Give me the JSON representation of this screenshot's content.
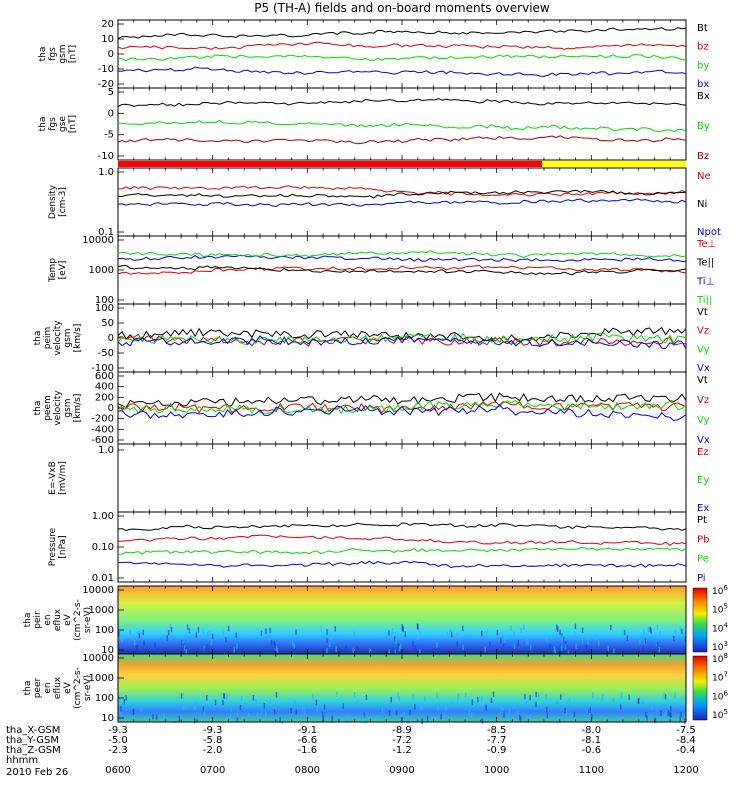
{
  "chart_data": {
    "type": "line",
    "title": "P5 (TH-A) fields and on-board moments overview",
    "date_label": "2010 Feb 26",
    "x_ticks": [
      "0600",
      "0700",
      "0800",
      "0900",
      "1000",
      "1100",
      "1200"
    ],
    "ephemeris": [
      {
        "label": "tha_X-GSM",
        "values": [
          "-9.3",
          "-9.3",
          "-9.1",
          "-8.9",
          "-8.5",
          "-8.0",
          "-7.5"
        ]
      },
      {
        "label": "tha_Y-GSM",
        "values": [
          "-5.0",
          "-5.8",
          "-6.6",
          "-7.2",
          "-7.7",
          "-8.1",
          "-8.4"
        ]
      },
      {
        "label": "tha_Z-GSM",
        "values": [
          "-2.3",
          "-2.0",
          "-1.6",
          "-1.2",
          "-0.9",
          "-0.6",
          "-0.4"
        ]
      },
      {
        "label": "hhmm",
        "values": []
      }
    ],
    "panels": [
      {
        "id": "fgs-gsm",
        "ylabel": [
          "tha",
          "fgs",
          "gsm",
          "[nT]"
        ],
        "ylim": [
          -20,
          20
        ],
        "yticks": [
          "20",
          "10",
          "0",
          "-10",
          "-20"
        ],
        "series": [
          {
            "name": "Bt",
            "color": "#000000"
          },
          {
            "name": "bz",
            "color": "#e00000"
          },
          {
            "name": "by",
            "color": "#00dd00"
          },
          {
            "name": "bx",
            "color": "#0000e0"
          }
        ]
      },
      {
        "id": "fgs-gse",
        "ylabel": [
          "tha",
          "fgs",
          "gse",
          "[nT]"
        ],
        "ylim": [
          -12,
          8
        ],
        "yticks": [
          "5",
          "0",
          "-5",
          "-10"
        ],
        "series": [
          {
            "name": "Bx",
            "color": "#000000"
          },
          {
            "name": "By",
            "color": "#00dd00"
          },
          {
            "name": "Bz",
            "color": "#a00000"
          }
        ]
      },
      {
        "id": "density",
        "ylabel": [
          "Density",
          "[cm-3]"
        ],
        "ylim": [
          0.1,
          1.0
        ],
        "yticks": [
          "1.0",
          "0.1"
        ],
        "log": true,
        "series": [
          {
            "name": "Ne",
            "color": "#e00000"
          },
          {
            "name": "Ni",
            "color": "#000000"
          },
          {
            "name": "Npot",
            "color": "#0000e0"
          }
        ]
      },
      {
        "id": "temperature",
        "ylabel": [
          "Temp",
          "[eV]"
        ],
        "ylim": [
          100,
          10000
        ],
        "yticks": [
          "10000",
          "1000",
          "100"
        ],
        "log": true,
        "series": [
          {
            "name": "Te⊥",
            "color": "#e00000"
          },
          {
            "name": "Te||",
            "color": "#000000"
          },
          {
            "name": "Ti⊥",
            "color": "#0000e0"
          },
          {
            "name": "Ti||",
            "color": "#00dd00"
          }
        ]
      },
      {
        "id": "peim-velocity",
        "ylabel": [
          "tha",
          "peim",
          "velocity",
          "gsm",
          "[km/s]"
        ],
        "ylim": [
          -100,
          100
        ],
        "yticks": [
          "100",
          "50",
          "0",
          "-50",
          "-100"
        ],
        "series": [
          {
            "name": "Vt",
            "color": "#000000"
          },
          {
            "name": "Vz",
            "color": "#e00000"
          },
          {
            "name": "Vy",
            "color": "#00dd00"
          },
          {
            "name": "Vx",
            "color": "#0000e0"
          }
        ]
      },
      {
        "id": "peem-velocity",
        "ylabel": [
          "tha",
          "peem",
          "velocity",
          "gsm",
          "[km/s]"
        ],
        "ylim": [
          -600,
          600
        ],
        "yticks": [
          "600",
          "400",
          "200",
          "0",
          "-200",
          "-400",
          "-600"
        ],
        "series": [
          {
            "name": "Vt",
            "color": "#000000"
          },
          {
            "name": "Vz",
            "color": "#e00000"
          },
          {
            "name": "Vy",
            "color": "#00dd00"
          },
          {
            "name": "Vx",
            "color": "#0000e0"
          }
        ]
      },
      {
        "id": "efield",
        "ylabel": [
          "E=-VxB",
          "[mV/m]"
        ],
        "ylim": [
          0,
          1
        ],
        "yticks": [
          "1.0"
        ],
        "series": [
          {
            "name": "Ez",
            "color": "#e00000"
          },
          {
            "name": "Ey",
            "color": "#00dd00"
          },
          {
            "name": "Ex",
            "color": "#0000e0"
          }
        ]
      },
      {
        "id": "pressure",
        "ylabel": [
          "Pressure",
          "[nPa]"
        ],
        "ylim": [
          0.01,
          1.0
        ],
        "yticks": [
          "1.00",
          "0.10",
          "0.01"
        ],
        "log": true,
        "series": [
          {
            "name": "Pt",
            "color": "#000000"
          },
          {
            "name": "Pb",
            "color": "#e00000"
          },
          {
            "name": "Pe",
            "color": "#00dd00"
          },
          {
            "name": "Pi",
            "color": "#0000e0"
          }
        ]
      },
      {
        "id": "peir-eflux",
        "ylabel": [
          "tha",
          "peir",
          "en",
          "eflux",
          "eV",
          "(cm^2-s-",
          "sr-eV)"
        ],
        "yticks": [
          "10000",
          "1000",
          "100",
          "10"
        ],
        "colorbar": [
          "10^6",
          "10^5",
          "10^4",
          "10^3"
        ]
      },
      {
        "id": "peer-eflux",
        "ylabel": [
          "tha",
          "peer",
          "en",
          "eflux",
          "eV",
          "(cm^2-s-",
          "sr-eV)"
        ],
        "yticks": [
          "10000",
          "1000",
          "100",
          "10"
        ],
        "colorbar": [
          "10^8",
          "10^7",
          "10^6",
          "10^5"
        ]
      }
    ]
  }
}
